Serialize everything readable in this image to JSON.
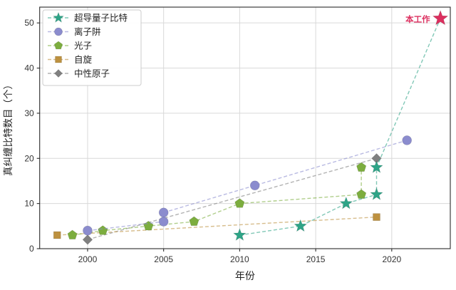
{
  "chart_data": {
    "type": "line",
    "title": "",
    "xlabel": "年份",
    "ylabel": "真纠缠比特数目（个）",
    "xlim": [
      1996.85,
      2023.85
    ],
    "ylim": [
      0,
      53.5
    ],
    "x_ticks": [
      2000,
      2005,
      2010,
      2015,
      2020
    ],
    "y_ticks": [
      0,
      10,
      20,
      30,
      40,
      50
    ],
    "grid": true,
    "legend_position": "upper-left",
    "series": [
      {
        "key": "superconducting",
        "name": "超导量子比特",
        "marker": "star",
        "color": "#2ea487",
        "points": [
          [
            2010,
            3
          ],
          [
            2014,
            5
          ],
          [
            2017,
            10
          ],
          [
            2019,
            12
          ],
          [
            2019,
            18
          ]
        ]
      },
      {
        "key": "ion-trap",
        "name": "离子阱",
        "marker": "circle",
        "color": "#8b8cce",
        "points": [
          [
            2000,
            4
          ],
          [
            2005,
            6
          ],
          [
            2005,
            8
          ],
          [
            2011,
            14
          ],
          [
            2021,
            24
          ]
        ]
      },
      {
        "key": "photon",
        "name": "光子",
        "marker": "pentagon",
        "color": "#7cad3e",
        "points": [
          [
            1999,
            3
          ],
          [
            2001,
            4
          ],
          [
            2004,
            5
          ],
          [
            2007,
            6
          ],
          [
            2010,
            10
          ],
          [
            2018,
            12
          ],
          [
            2018,
            18
          ]
        ]
      },
      {
        "key": "spin",
        "name": "自旋",
        "marker": "square",
        "color": "#bd9140",
        "points": [
          [
            1998,
            3
          ],
          [
            2019,
            7
          ]
        ]
      },
      {
        "key": "neutral-atom",
        "name": "中性原子",
        "marker": "diamond",
        "color": "#808080",
        "points": [
          [
            2000,
            2
          ],
          [
            2019,
            20
          ]
        ]
      }
    ],
    "highlight": {
      "series": "超导量子比特",
      "label": "本工作",
      "marker": "star",
      "color": "#dc2f5f",
      "point": [
        2023.2,
        51
      ]
    },
    "colors": {
      "grid": "#d9d9d9",
      "spine": "#2b2b2b",
      "tick_label": "#333333",
      "axis_label": "#222222",
      "legend_border": "#cccccc",
      "legend_bg": "#ffffff"
    }
  }
}
